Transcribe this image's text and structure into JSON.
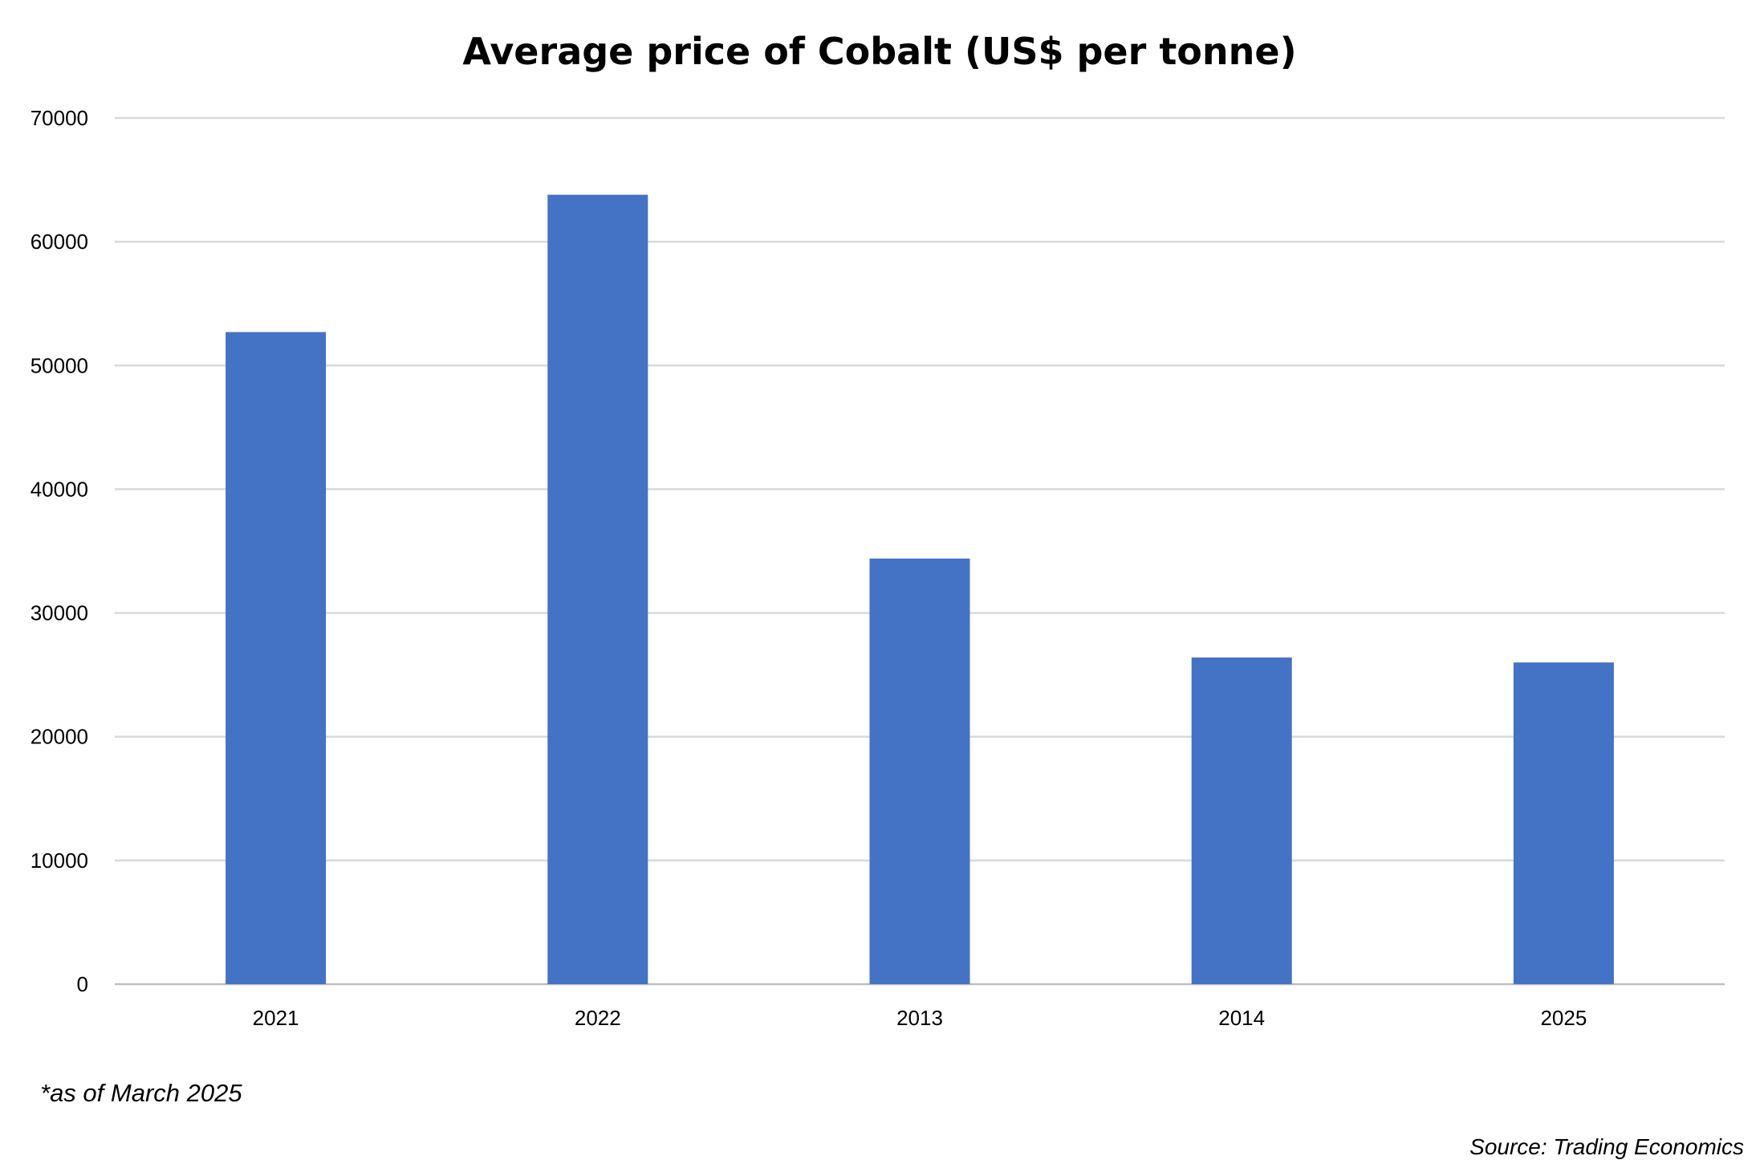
{
  "chart_data": {
    "type": "bar",
    "title": "Average price of Cobalt (US$ per tonne)",
    "xlabel": "",
    "ylabel": "",
    "categories": [
      "2021",
      "2022",
      "2013",
      "2014",
      "2025"
    ],
    "values": [
      52700,
      63800,
      34400,
      26400,
      26000
    ],
    "ylim": [
      0,
      70000
    ],
    "yticks": [
      0,
      10000,
      20000,
      30000,
      40000,
      50000,
      60000,
      70000
    ],
    "grid": true,
    "legend": "none",
    "bar_color": "#4472C4",
    "gridline_color": "#D9D9D9",
    "footnote": "*as of March 2025",
    "source": "Source: Trading Economics"
  }
}
